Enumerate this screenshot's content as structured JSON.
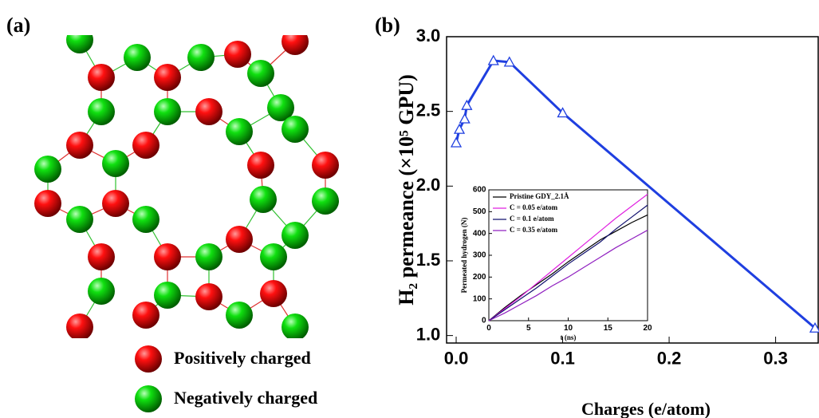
{
  "panel_a": {
    "label": "(a)",
    "legend": [
      {
        "label": "Positively charged",
        "color": "#e00000"
      },
      {
        "label": "Negatively charged",
        "color": "#00c800"
      }
    ]
  },
  "chart_data": [
    {
      "type": "line",
      "panel_label": "(b)",
      "x_label": "Charges (e/atom)",
      "y_label": "H₂ permeance (×10⁵ GPU)",
      "x": [
        0,
        0.003,
        0.008,
        0.01,
        0.035,
        0.05,
        0.1,
        0.337
      ],
      "series": [
        {
          "color": "#1f3fe0",
          "marker": "triangle",
          "values": [
            2.29,
            2.38,
            2.45,
            2.54,
            2.84,
            2.83,
            2.49,
            1.05
          ]
        }
      ],
      "xlim": [
        -0.009,
        0.34
      ],
      "ylim": [
        0.95,
        3.0
      ],
      "xticks": [
        {
          "value": 0,
          "label": "0.0"
        },
        0.1,
        0.2,
        0.3
      ],
      "yticks": [
        {
          "value": 1,
          "label": "1.0"
        },
        1.5,
        {
          "value": 2,
          "label": "2.0"
        },
        2.5,
        {
          "value": 3,
          "label": "3.0"
        }
      ]
    },
    {
      "type": "line",
      "x_label": "t (ns)",
      "y_label": "Permeated hydrogen (N)",
      "x": [
        0,
        2,
        4,
        6,
        8,
        10,
        12,
        14,
        16,
        18,
        20
      ],
      "series": [
        {
          "name": "Pristine GDY_2.1Å",
          "color": "#000000",
          "values": [
            0,
            60,
            115,
            165,
            215,
            270,
            320,
            370,
            410,
            450,
            485
          ]
        },
        {
          "name": "C = 0.05 e/atom",
          "color": "#e020e0",
          "values": [
            0,
            55,
            110,
            170,
            230,
            290,
            350,
            410,
            470,
            525,
            580
          ]
        },
        {
          "name": "C = 0.1   e/atom",
          "color": "#10106e",
          "values": [
            0,
            50,
            100,
            150,
            205,
            260,
            310,
            360,
            420,
            475,
            530
          ]
        },
        {
          "name": "C = 0.35 e/atom",
          "color": "#9020c0",
          "values": [
            0,
            35,
            75,
            115,
            160,
            200,
            245,
            290,
            335,
            375,
            415
          ]
        }
      ],
      "xlim": [
        0,
        20
      ],
      "ylim": [
        0,
        600
      ],
      "xticks": [
        0,
        5,
        10,
        15,
        20
      ],
      "yticks": [
        0,
        100,
        200,
        300,
        400,
        500,
        600
      ]
    }
  ]
}
